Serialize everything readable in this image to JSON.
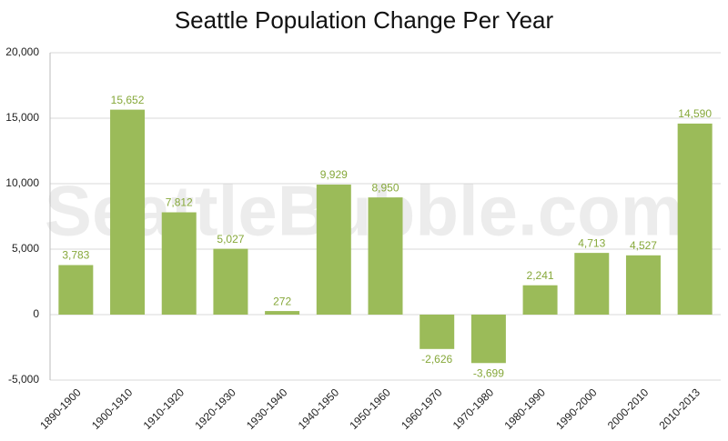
{
  "chart_data": {
    "type": "bar",
    "title": "Seattle Population Change Per Year",
    "watermark": "SeattleBubble.com",
    "categories": [
      "1890-1900",
      "1900-1910",
      "1910-1920",
      "1920-1930",
      "1930-1940",
      "1940-1950",
      "1950-1960",
      "1960-1970",
      "1970-1980",
      "1980-1990",
      "1990-2000",
      "2000-2010",
      "2010-2013"
    ],
    "values": [
      3783,
      15652,
      7812,
      5027,
      272,
      9929,
      8950,
      -2626,
      -3699,
      2241,
      4713,
      4527,
      14590
    ],
    "value_labels": [
      "3,783",
      "15,652",
      "7,812",
      "5,027",
      "272",
      "9,929",
      "8,950",
      "-2,626",
      "-3,699",
      "2,241",
      "4,713",
      "4,527",
      "14,590"
    ],
    "color": "#9bbb59",
    "ylim": [
      -5000,
      20000
    ],
    "yticks": [
      {
        "value": -5000,
        "label": "-5,000"
      },
      0,
      {
        "value": 5000,
        "label": "5,000"
      },
      {
        "value": 10000,
        "label": "10,000"
      },
      {
        "value": 15000,
        "label": "15,000"
      },
      {
        "value": 20000,
        "label": "20,000"
      }
    ],
    "grid": true
  }
}
